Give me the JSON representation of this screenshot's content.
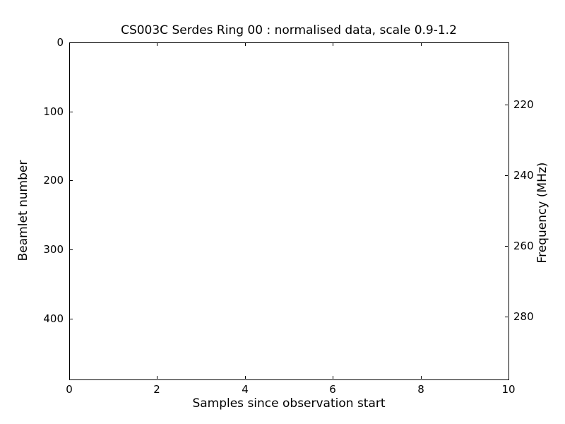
{
  "chart_data": {
    "type": "heatmap",
    "title": "CS003C Serdes Ring 00 : normalised data, scale 0.9-1.2",
    "xlabel": "Samples since observation start",
    "ylabel_left": "Beamlet number",
    "ylabel_right": "Frequency (MHz)",
    "xlim": [
      0,
      10
    ],
    "ylim_left": [
      0,
      488
    ],
    "ylim_right": [
      202.4,
      297.8
    ],
    "x_ticks": [
      0,
      2,
      4,
      6,
      8,
      10
    ],
    "y_ticks_left": [
      0,
      100,
      200,
      300,
      400
    ],
    "y_ticks_right": [
      220,
      240,
      260,
      280
    ],
    "normalisation_scale": [
      0.9,
      1.2
    ],
    "values": [],
    "grid": false,
    "legend": null,
    "plot_background": "#ffffff",
    "axis_color": "#000000",
    "tick_direction": "in"
  }
}
